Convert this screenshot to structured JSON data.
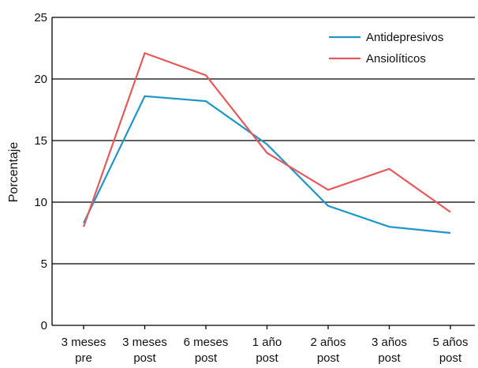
{
  "chart_data": {
    "type": "line",
    "ylabel": "Porcentaje",
    "ylim": [
      0,
      25
    ],
    "yticks": [
      0,
      5,
      10,
      15,
      20,
      25
    ],
    "grid": true,
    "legend_position": "top-right",
    "categories": [
      [
        "3 meses",
        "pre"
      ],
      [
        "3 meses",
        "post"
      ],
      [
        "6 meses",
        "post"
      ],
      [
        "1 año",
        "post"
      ],
      [
        "2 años",
        "post"
      ],
      [
        "3 años",
        "post"
      ],
      [
        "5 años",
        "post"
      ]
    ],
    "series": [
      {
        "name": "Antidepresivos",
        "color": "#1f96c9",
        "values": [
          8.3,
          18.6,
          18.2,
          14.7,
          9.7,
          8.0,
          7.5
        ]
      },
      {
        "name": "Ansiolíticos",
        "color": "#e55a5a",
        "values": [
          8.0,
          22.1,
          20.3,
          14.0,
          11.0,
          12.7,
          9.2
        ]
      }
    ]
  }
}
